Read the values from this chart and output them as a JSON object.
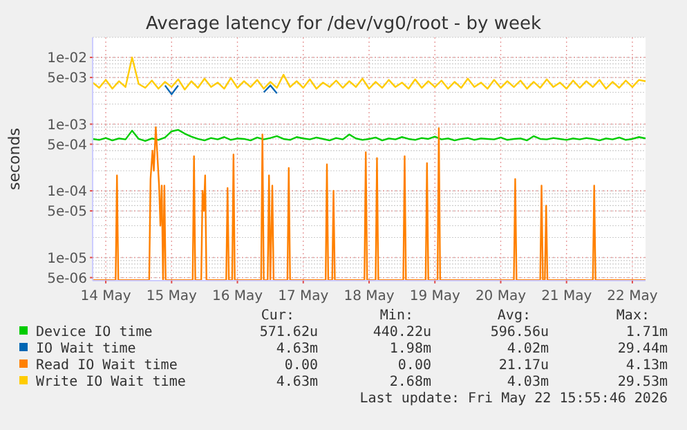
{
  "chart_data": {
    "type": "line",
    "title": "Average latency for /dev/vg0/root - by week",
    "ylabel": "seconds",
    "log": "y",
    "grid": true,
    "legend": "bottom",
    "marker": "none",
    "line_style": "solid",
    "xlim": [
      "2026-05-13T19:12",
      "2026-05-22T04:48"
    ],
    "xticks": [
      {
        "value": "2026-05-14",
        "label": "14 May"
      },
      {
        "value": "2026-05-15",
        "label": "15 May"
      },
      {
        "value": "2026-05-16",
        "label": "16 May"
      },
      {
        "value": "2026-05-17",
        "label": "17 May"
      },
      {
        "value": "2026-05-18",
        "label": "18 May"
      },
      {
        "value": "2026-05-19",
        "label": "19 May"
      },
      {
        "value": "2026-05-20",
        "label": "20 May"
      },
      {
        "value": "2026-05-21",
        "label": "21 May"
      },
      {
        "value": "2026-05-22",
        "label": "22 May"
      }
    ],
    "ylim": [
      4.5e-06,
      0.02
    ],
    "yticks": [
      {
        "value": 0.01,
        "label": "1e-02"
      },
      {
        "value": 0.005,
        "label": "5e-03"
      },
      {
        "value": 0.001,
        "label": "1e-03"
      },
      {
        "value": 0.0005,
        "label": "5e-04"
      },
      {
        "value": 0.0001,
        "label": "1e-04"
      },
      {
        "value": 5e-05,
        "label": "5e-05"
      },
      {
        "value": 1e-05,
        "label": "1e-05"
      },
      {
        "value": 5e-06,
        "label": "5e-06"
      }
    ],
    "x": [
      "2026-05-13T19:12",
      "2026-05-13T21:36",
      "2026-05-14T00:00",
      "2026-05-14T02:24",
      "2026-05-14T04:48",
      "2026-05-14T07:12",
      "2026-05-14T09:36",
      "2026-05-14T12:00",
      "2026-05-14T14:24",
      "2026-05-14T16:48",
      "2026-05-14T19:12",
      "2026-05-14T21:36",
      "2026-05-15T00:00",
      "2026-05-15T02:24",
      "2026-05-15T04:48",
      "2026-05-15T07:12",
      "2026-05-15T09:36",
      "2026-05-15T12:00",
      "2026-05-15T14:24",
      "2026-05-15T16:48",
      "2026-05-15T19:12",
      "2026-05-15T21:36",
      "2026-05-16T00:00",
      "2026-05-16T02:24",
      "2026-05-16T04:48",
      "2026-05-16T07:12",
      "2026-05-16T09:36",
      "2026-05-16T12:00",
      "2026-05-16T14:24",
      "2026-05-16T16:48",
      "2026-05-16T19:12",
      "2026-05-16T21:36",
      "2026-05-17T00:00",
      "2026-05-17T02:24",
      "2026-05-17T04:48",
      "2026-05-17T07:12",
      "2026-05-17T09:36",
      "2026-05-17T12:00",
      "2026-05-17T14:24",
      "2026-05-17T16:48",
      "2026-05-17T19:12",
      "2026-05-17T21:36",
      "2026-05-18T00:00",
      "2026-05-18T02:24",
      "2026-05-18T04:48",
      "2026-05-18T07:12",
      "2026-05-18T09:36",
      "2026-05-18T12:00",
      "2026-05-18T14:24",
      "2026-05-18T16:48",
      "2026-05-18T19:12",
      "2026-05-18T21:36",
      "2026-05-19T00:00",
      "2026-05-19T02:24",
      "2026-05-19T04:48",
      "2026-05-19T07:12",
      "2026-05-19T09:36",
      "2026-05-19T12:00",
      "2026-05-19T14:24",
      "2026-05-19T16:48",
      "2026-05-19T19:12",
      "2026-05-19T21:36",
      "2026-05-20T00:00",
      "2026-05-20T02:24",
      "2026-05-20T04:48",
      "2026-05-20T07:12",
      "2026-05-20T09:36",
      "2026-05-20T12:00",
      "2026-05-20T14:24",
      "2026-05-20T16:48",
      "2026-05-20T19:12",
      "2026-05-20T21:36",
      "2026-05-21T00:00",
      "2026-05-21T02:24",
      "2026-05-21T04:48",
      "2026-05-21T07:12",
      "2026-05-21T09:36",
      "2026-05-21T12:00",
      "2026-05-21T14:24",
      "2026-05-21T16:48",
      "2026-05-21T19:12",
      "2026-05-21T21:36",
      "2026-05-22T00:00",
      "2026-05-22T02:24",
      "2026-05-22T04:48"
    ],
    "series": [
      {
        "name": "Device IO time",
        "color": "#00cc00",
        "values": [
          0.0006,
          0.00058,
          0.00062,
          0.00057,
          0.00061,
          0.00059,
          0.0008,
          0.0006,
          0.00056,
          0.00061,
          0.00058,
          0.00063,
          0.00078,
          0.00082,
          0.00072,
          0.00065,
          0.0006,
          0.00057,
          0.00062,
          0.00059,
          0.00064,
          0.00058,
          0.00061,
          0.0006,
          0.00057,
          0.00063,
          0.00059,
          0.00062,
          0.00066,
          0.0006,
          0.00058,
          0.00064,
          0.00061,
          0.00059,
          0.00063,
          0.0006,
          0.00057,
          0.00062,
          0.00059,
          0.0007,
          0.00061,
          0.00058,
          0.0006,
          0.00063,
          0.00057,
          0.00061,
          0.00059,
          0.00064,
          0.0006,
          0.00058,
          0.00062,
          0.0006,
          0.00065,
          0.00059,
          0.00061,
          0.00057,
          0.0006,
          0.00062,
          0.00058,
          0.00061,
          0.0006,
          0.00059,
          0.00063,
          0.00058,
          0.0006,
          0.00061,
          0.00057,
          0.00066,
          0.0006,
          0.00059,
          0.00062,
          0.0006,
          0.00058,
          0.00061,
          0.00059,
          0.00062,
          0.0006,
          0.00057,
          0.00061,
          0.00059,
          0.00063,
          0.00058,
          0.0006,
          0.00064,
          0.00061
        ]
      },
      {
        "name": "IO Wait time",
        "color": "#0066b3",
        "values": [
          null,
          null,
          null,
          null,
          null,
          null,
          null,
          null,
          null,
          null,
          null,
          0.0038,
          0.0028,
          0.0038,
          null,
          null,
          null,
          null,
          null,
          null,
          null,
          null,
          null,
          null,
          null,
          null,
          0.003,
          0.0038,
          0.0029,
          null,
          null,
          null,
          null,
          null,
          null,
          null,
          null,
          null,
          null,
          null,
          null,
          null,
          null,
          null,
          null,
          null,
          null,
          null,
          null,
          null,
          null,
          null,
          null,
          null,
          null,
          null,
          null,
          null,
          null,
          null,
          null,
          null,
          null,
          null,
          null,
          null,
          null,
          null,
          null,
          null,
          null,
          null,
          null,
          null,
          null,
          null,
          null,
          null,
          null,
          null,
          null,
          null,
          null,
          null,
          null
        ]
      },
      {
        "name": "Read IO Wait time",
        "color": "#ff8000",
        "x": [
          "2026-05-13T19:12",
          "2026-05-14T03:36",
          "2026-05-14T04:05",
          "2026-05-14T04:34",
          "2026-05-14T15:50",
          "2026-05-14T16:19",
          "2026-05-14T17:02",
          "2026-05-14T17:31",
          "2026-05-14T18:14",
          "2026-05-14T18:43",
          "2026-05-14T19:26",
          "2026-05-14T19:55",
          "2026-05-14T20:24",
          "2026-05-14T20:53",
          "2026-05-14T21:22",
          "2026-05-14T21:50",
          "2026-05-15T07:41",
          "2026-05-15T08:10",
          "2026-05-15T08:38",
          "2026-05-15T10:48",
          "2026-05-15T11:17",
          "2026-05-15T11:46",
          "2026-05-15T12:14",
          "2026-05-15T12:43",
          "2026-05-15T19:55",
          "2026-05-15T20:24",
          "2026-05-15T20:53",
          "2026-05-15T22:05",
          "2026-05-15T22:34",
          "2026-05-15T23:02",
          "2026-05-16T08:38",
          "2026-05-16T09:07",
          "2026-05-16T09:36",
          "2026-05-16T11:02",
          "2026-05-16T11:31",
          "2026-05-16T12:00",
          "2026-05-16T12:43",
          "2026-05-16T13:12",
          "2026-05-16T18:14",
          "2026-05-16T18:43",
          "2026-05-16T19:12",
          "2026-05-17T08:10",
          "2026-05-17T08:38",
          "2026-05-17T09:07",
          "2026-05-17T10:34",
          "2026-05-17T11:02",
          "2026-05-17T11:31",
          "2026-05-17T22:19",
          "2026-05-17T22:48",
          "2026-05-17T23:17",
          "2026-05-18T02:24",
          "2026-05-18T02:53",
          "2026-05-18T03:22",
          "2026-05-18T12:29",
          "2026-05-18T12:58",
          "2026-05-18T13:26",
          "2026-05-18T20:38",
          "2026-05-18T21:07",
          "2026-05-18T21:36",
          "2026-05-19T00:58",
          "2026-05-19T01:26",
          "2026-05-19T01:55",
          "2026-05-20T04:48",
          "2026-05-20T05:17",
          "2026-05-20T05:46",
          "2026-05-20T14:24",
          "2026-05-20T14:53",
          "2026-05-20T15:22",
          "2026-05-20T16:05",
          "2026-05-20T16:34",
          "2026-05-20T17:02",
          "2026-05-21T09:36",
          "2026-05-21T10:05",
          "2026-05-21T10:34",
          "2026-05-22T04:48"
        ],
        "values": [
          4.6e-06,
          4.6e-06,
          0.00017,
          4.6e-06,
          4.6e-06,
          0.00015,
          0.0004,
          0.0002,
          0.0009,
          0.0004,
          0.00012,
          3e-05,
          0.00012,
          4.6e-06,
          0.00012,
          4.6e-06,
          4.6e-06,
          0.00033,
          4.6e-06,
          4.6e-06,
          0.0001,
          5e-05,
          0.00017,
          4.6e-06,
          4.6e-06,
          0.00011,
          4.6e-06,
          4.6e-06,
          0.00035,
          4.6e-06,
          4.6e-06,
          0.0007,
          4.6e-06,
          4.6e-06,
          0.00017,
          4.6e-06,
          0.00012,
          4.6e-06,
          4.6e-06,
          0.00022,
          4.6e-06,
          4.6e-06,
          0.00025,
          4.6e-06,
          4.6e-06,
          0.0001,
          4.6e-06,
          4.6e-06,
          0.00038,
          4.6e-06,
          4.6e-06,
          0.00031,
          4.6e-06,
          4.6e-06,
          0.00033,
          4.6e-06,
          4.6e-06,
          0.00026,
          4.6e-06,
          4.6e-06,
          0.00087,
          4.6e-06,
          4.6e-06,
          0.00015,
          4.6e-06,
          4.6e-06,
          0.00012,
          4.6e-06,
          4.6e-06,
          6e-05,
          4.6e-06,
          4.6e-06,
          0.00012,
          4.6e-06,
          4.6e-06
        ]
      },
      {
        "name": "Write IO Wait time",
        "color": "#ffcc00",
        "values": [
          0.0042,
          0.0035,
          0.0046,
          0.0034,
          0.0044,
          0.0036,
          0.01,
          0.004,
          0.0035,
          0.0045,
          0.0034,
          0.0043,
          0.0036,
          0.0047,
          0.0033,
          0.0044,
          0.0035,
          0.0048,
          0.0036,
          0.0042,
          0.0034,
          0.0049,
          0.0035,
          0.0044,
          0.0036,
          0.0046,
          0.0034,
          0.0043,
          0.0035,
          0.0055,
          0.0036,
          0.0044,
          0.0035,
          0.0047,
          0.0034,
          0.0042,
          0.0036,
          0.0045,
          0.0035,
          0.0044,
          0.0036,
          0.0048,
          0.0034,
          0.0043,
          0.0035,
          0.0046,
          0.0036,
          0.0042,
          0.0034,
          0.0047,
          0.0035,
          0.0044,
          0.0036,
          0.0045,
          0.0034,
          0.0043,
          0.0035,
          0.0048,
          0.0036,
          0.0042,
          0.0034,
          0.0046,
          0.0035,
          0.0044,
          0.0036,
          0.0045,
          0.0034,
          0.0043,
          0.0035,
          0.0047,
          0.0036,
          0.0042,
          0.0034,
          0.0045,
          0.0035,
          0.0044,
          0.0036,
          0.0046,
          0.0034,
          0.0043,
          0.0035,
          0.0045,
          0.0036,
          0.0046,
          0.0044
        ]
      }
    ],
    "annotations": [
      "Cur:",
      "Min:",
      "Avg:",
      "Max:",
      "571.62u",
      "440.22u",
      "596.56u",
      "1.71m",
      "4.63m",
      "1.98m",
      "4.02m",
      "29.44m",
      "0.00",
      "0.00",
      "21.17u",
      "4.13m",
      "4.63m",
      "2.68m",
      "4.03m",
      "29.53m",
      "Last update: Fri May 22 15:55:46 2026"
    ]
  }
}
